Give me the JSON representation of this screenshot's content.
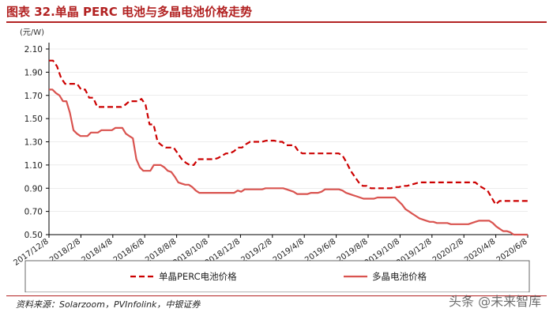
{
  "page": {
    "title": "图表 32.单晶 PERC 电池与多晶电池价格走势",
    "source": "资料来源：Solarzoom，PVInfolink，中银证券",
    "watermark": "头条 @未来智库"
  },
  "chart_data": {
    "type": "line",
    "ylabel": "(元/W)",
    "ylim": [
      0.5,
      2.1
    ],
    "yticks": [
      "2.10",
      "1.90",
      "1.70",
      "1.50",
      "1.30",
      "1.10",
      "0.90",
      "0.70",
      "0.50"
    ],
    "x_tick_labels": [
      "2017/12/8",
      "2018/2/8",
      "2018/4/8",
      "2018/6/8",
      "2018/8/8",
      "2018/10/8",
      "2018/12/8",
      "2019/2/8",
      "2019/4/8",
      "2019/6/8",
      "2019/8/8",
      "2019/10/8",
      "2019/12/8",
      "2020/2/8",
      "2020/4/8",
      "2020/6/8"
    ],
    "colors": {
      "perc": "#cc0000",
      "multi": "#d9534f",
      "axis": "#000000",
      "grid": "#d9d9d9"
    },
    "series": [
      {
        "name": "单晶PERC电池价格",
        "style": "dashed",
        "values": [
          2.0,
          2.0,
          1.95,
          1.85,
          1.8,
          1.8,
          1.8,
          1.8,
          1.75,
          1.75,
          1.68,
          1.68,
          1.6,
          1.6,
          1.6,
          1.6,
          1.6,
          1.6,
          1.6,
          1.62,
          1.65,
          1.65,
          1.65,
          1.67,
          1.62,
          1.45,
          1.45,
          1.3,
          1.27,
          1.25,
          1.25,
          1.25,
          1.2,
          1.15,
          1.12,
          1.1,
          1.1,
          1.15,
          1.15,
          1.15,
          1.15,
          1.15,
          1.16,
          1.18,
          1.2,
          1.2,
          1.22,
          1.25,
          1.25,
          1.28,
          1.3,
          1.3,
          1.3,
          1.3,
          1.31,
          1.31,
          1.31,
          1.3,
          1.3,
          1.27,
          1.27,
          1.27,
          1.22,
          1.2,
          1.2,
          1.2,
          1.2,
          1.2,
          1.2,
          1.2,
          1.2,
          1.2,
          1.2,
          1.18,
          1.12,
          1.05,
          1.0,
          0.95,
          0.92,
          0.92,
          0.9,
          0.9,
          0.9,
          0.9,
          0.9,
          0.9,
          0.91,
          0.91,
          0.92,
          0.92,
          0.93,
          0.94,
          0.95,
          0.95,
          0.95,
          0.95,
          0.95,
          0.95,
          0.95,
          0.95,
          0.95,
          0.95,
          0.95,
          0.95,
          0.95,
          0.95,
          0.95,
          0.92,
          0.9,
          0.88,
          0.82,
          0.76,
          0.79,
          0.79,
          0.79,
          0.79,
          0.79,
          0.79,
          0.79,
          0.79
        ]
      },
      {
        "name": "多晶电池价格",
        "style": "solid",
        "values": [
          1.75,
          1.75,
          1.72,
          1.7,
          1.65,
          1.65,
          1.55,
          1.4,
          1.37,
          1.35,
          1.35,
          1.35,
          1.38,
          1.38,
          1.38,
          1.4,
          1.4,
          1.4,
          1.4,
          1.42,
          1.42,
          1.42,
          1.37,
          1.35,
          1.33,
          1.15,
          1.08,
          1.05,
          1.05,
          1.05,
          1.1,
          1.1,
          1.1,
          1.08,
          1.05,
          1.04,
          1.0,
          0.95,
          0.94,
          0.93,
          0.93,
          0.91,
          0.88,
          0.86,
          0.86,
          0.86,
          0.86,
          0.86,
          0.86,
          0.86,
          0.86,
          0.86,
          0.86,
          0.86,
          0.88,
          0.87,
          0.89,
          0.89,
          0.89,
          0.89,
          0.89,
          0.89,
          0.9,
          0.9,
          0.9,
          0.9,
          0.9,
          0.9,
          0.89,
          0.88,
          0.87,
          0.85,
          0.85,
          0.85,
          0.85,
          0.86,
          0.86,
          0.86,
          0.87,
          0.89,
          0.89,
          0.89,
          0.89,
          0.89,
          0.88,
          0.86,
          0.85,
          0.84,
          0.83,
          0.82,
          0.81,
          0.81,
          0.81,
          0.81,
          0.82,
          0.82,
          0.82,
          0.82,
          0.82,
          0.82,
          0.79,
          0.76,
          0.72,
          0.7,
          0.68,
          0.66,
          0.64,
          0.63,
          0.62,
          0.61,
          0.61,
          0.6,
          0.6,
          0.6,
          0.6,
          0.59,
          0.59,
          0.59,
          0.59,
          0.59,
          0.59,
          0.6,
          0.61,
          0.62,
          0.62,
          0.62,
          0.62,
          0.6,
          0.57,
          0.55,
          0.53,
          0.53,
          0.52,
          0.5,
          0.5,
          0.5,
          0.5,
          0.5
        ]
      }
    ],
    "legend": "bottom"
  }
}
